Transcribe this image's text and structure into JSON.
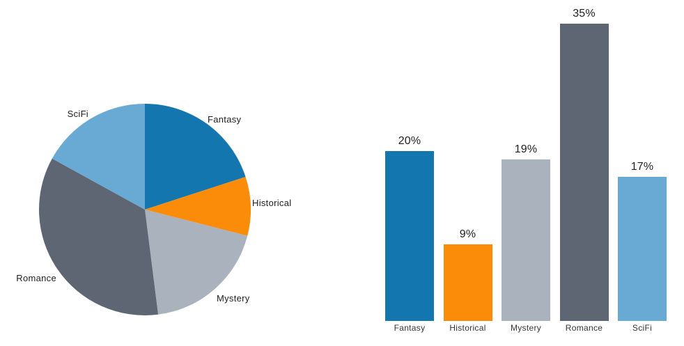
{
  "page": {
    "background": "#ffffff"
  },
  "text_colors": {
    "pie_label": "#1e1e1e",
    "bar_value_label": "#1e1e1e",
    "bar_category_label": "#333333"
  },
  "chart_data": [
    {
      "type": "pie",
      "categories": [
        "Fantasy",
        "Historical",
        "Mystery",
        "Romance",
        "SciFi"
      ],
      "values": [
        20,
        9,
        19,
        35,
        17
      ],
      "unit": "percent",
      "colors": [
        "#1476af",
        "#fa8c0a",
        "#aab2bd",
        "#5f6673",
        "#69aad5"
      ],
      "start_angle_deg": 0,
      "direction": "clockwise",
      "label_position": "outside",
      "legend_position": "none"
    },
    {
      "type": "bar",
      "categories": [
        "Fantasy",
        "Historical",
        "Mystery",
        "Romance",
        "SciFi"
      ],
      "values": [
        20,
        9,
        19,
        35,
        17
      ],
      "value_labels": [
        "20%",
        "9%",
        "19%",
        "35%",
        "17%"
      ],
      "colors": [
        "#1476af",
        "#fa8c0a",
        "#aab2bd",
        "#5f6673",
        "#69aad5"
      ],
      "ylim": [
        0,
        35
      ],
      "grid": false,
      "axis_lines": false,
      "legend_position": "none",
      "xlabel": "",
      "ylabel": ""
    }
  ]
}
